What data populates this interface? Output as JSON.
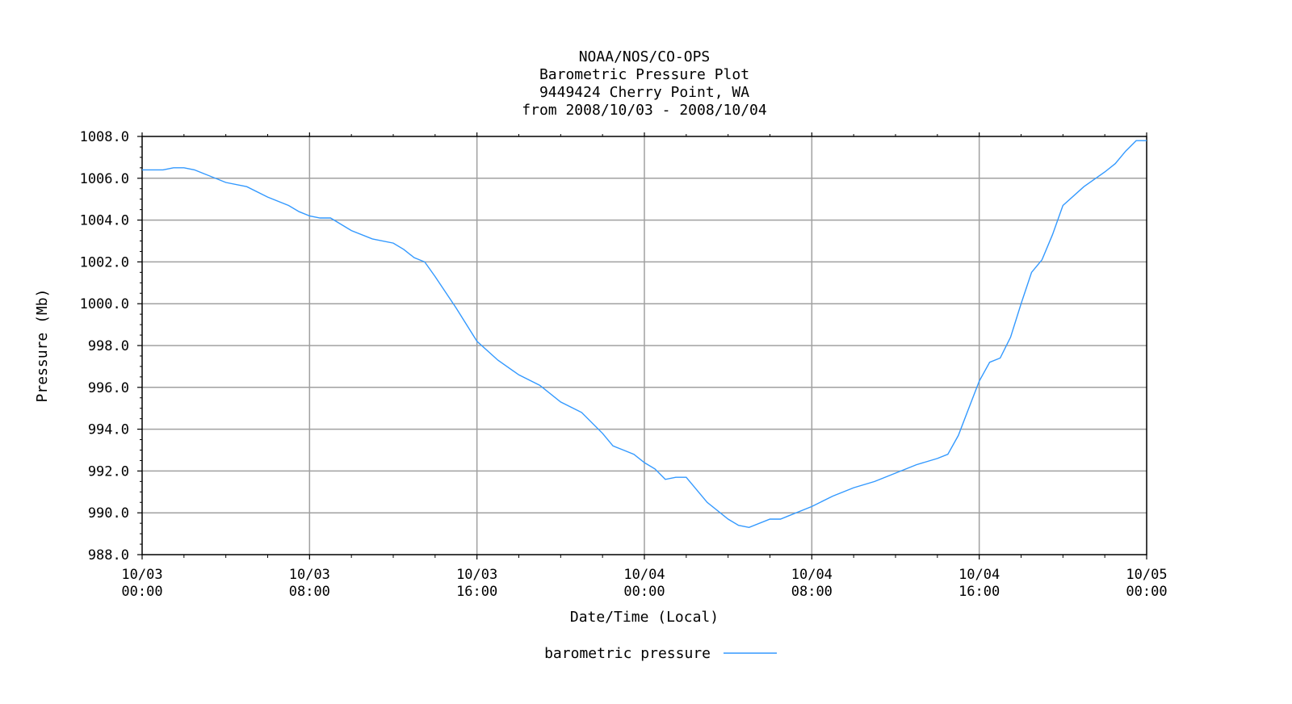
{
  "chart_data": {
    "type": "line",
    "title_lines": [
      "NOAA/NOS/CO-OPS",
      "Barometric Pressure Plot",
      "9449424 Cherry Point, WA",
      "from 2008/10/03 - 2008/10/04"
    ],
    "xlabel": "Date/Time (Local)",
    "ylabel": "Pressure (Mb)",
    "x_range_hours": [
      0,
      48
    ],
    "ylim": [
      988.0,
      1008.0
    ],
    "grid": true,
    "legend_position": "bottom-center",
    "y_ticks": [
      "988.0",
      "990.0",
      "992.0",
      "994.0",
      "996.0",
      "998.0",
      "1000.0",
      "1002.0",
      "1004.0",
      "1006.0",
      "1008.0"
    ],
    "x_ticks": [
      {
        "hour": 0,
        "date": "10/03",
        "time": "00:00"
      },
      {
        "hour": 8,
        "date": "10/03",
        "time": "08:00"
      },
      {
        "hour": 16,
        "date": "10/03",
        "time": "16:00"
      },
      {
        "hour": 24,
        "date": "10/04",
        "time": "00:00"
      },
      {
        "hour": 32,
        "date": "10/04",
        "time": "08:00"
      },
      {
        "hour": 40,
        "date": "10/04",
        "time": "16:00"
      },
      {
        "hour": 48,
        "date": "10/05",
        "time": "00:00"
      }
    ],
    "series": [
      {
        "name": "barometric pressure",
        "color": "#3399ff",
        "x_hours": [
          0,
          0.5,
          1,
          1.5,
          2,
          2.5,
          3,
          4,
          5,
          6,
          7,
          7.5,
          8,
          8.5,
          9,
          10,
          11,
          12,
          12.5,
          13,
          13.5,
          14,
          15,
          16,
          17,
          18,
          19,
          20,
          21,
          22,
          22.5,
          23,
          23.5,
          24,
          24.5,
          25,
          25.5,
          26,
          27,
          28,
          28.5,
          29,
          30,
          30.5,
          31,
          32,
          33,
          34,
          35,
          36,
          37,
          38,
          38.5,
          39,
          39.5,
          40,
          40.5,
          41,
          41.5,
          42,
          42.5,
          43,
          43.5,
          44,
          45,
          46,
          46.5,
          47,
          47.5,
          48
        ],
        "values": [
          1006.4,
          1006.4,
          1006.4,
          1006.5,
          1006.5,
          1006.4,
          1006.2,
          1005.8,
          1005.6,
          1005.1,
          1004.7,
          1004.4,
          1004.2,
          1004.1,
          1004.1,
          1003.5,
          1003.1,
          1002.9,
          1002.6,
          1002.2,
          1002.0,
          1001.3,
          999.8,
          998.2,
          997.3,
          996.6,
          996.1,
          995.3,
          994.8,
          993.8,
          993.2,
          993.0,
          992.8,
          992.4,
          992.1,
          991.6,
          991.7,
          991.7,
          990.5,
          989.7,
          989.4,
          989.3,
          989.7,
          989.7,
          989.9,
          990.3,
          990.8,
          991.2,
          991.5,
          991.9,
          992.3,
          992.6,
          992.8,
          993.7,
          995.0,
          996.3,
          997.2,
          997.4,
          998.4,
          1000.0,
          1001.5,
          1002.1,
          1003.3,
          1004.7,
          1005.6,
          1006.3,
          1006.7,
          1007.3,
          1007.8,
          1007.8
        ]
      }
    ]
  }
}
